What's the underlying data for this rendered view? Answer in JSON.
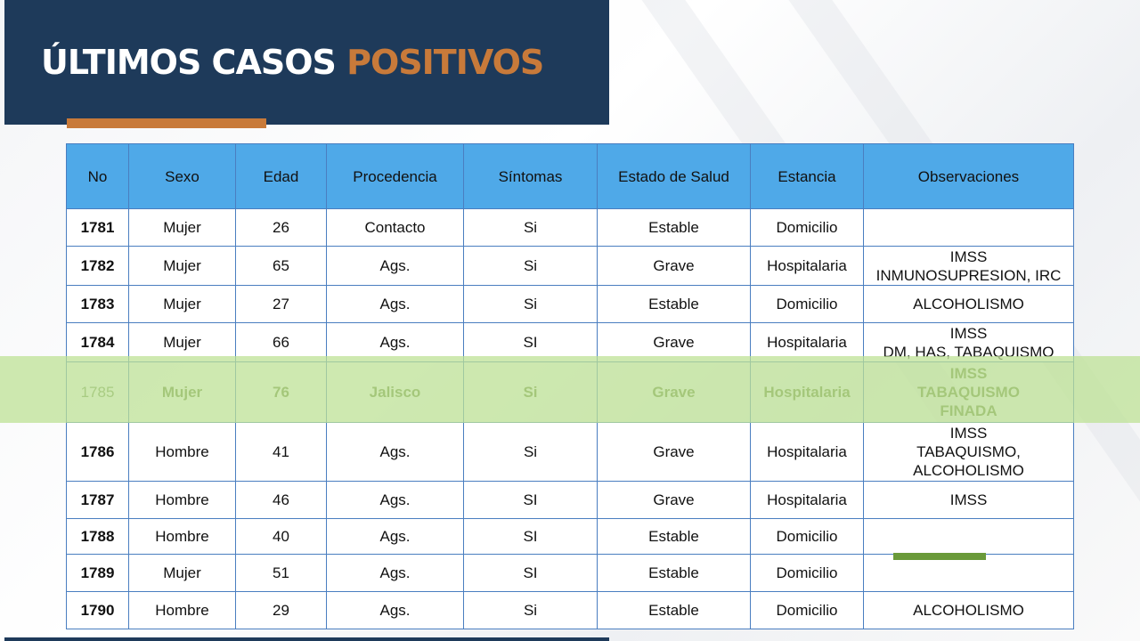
{
  "title": {
    "part1": "ÚLTIMOS CASOS ",
    "part2": "POSITIVOS"
  },
  "colors": {
    "header_bg": "#1e3a5a",
    "accent": "#c87a3a",
    "table_header": "#4fa9e8",
    "highlight": "#bee296"
  },
  "table": {
    "headers": [
      "No",
      "Sexo",
      "Edad",
      "Procedencia",
      "Síntomas",
      "Estado de Salud",
      "Estancia",
      "Observaciones"
    ],
    "rows": [
      [
        "1781",
        "Mujer",
        "26",
        "Contacto",
        "Si",
        "Estable",
        "Domicilio",
        ""
      ],
      [
        "1782",
        "Mujer",
        "65",
        "Ags.",
        "Si",
        "Grave",
        "Hospitalaria",
        "IMSS\nINMUNOSUPRESION, IRC"
      ],
      [
        "1783",
        "Mujer",
        "27",
        "Ags.",
        "Si",
        "Estable",
        "Domicilio",
        "ALCOHOLISMO"
      ],
      [
        "1784",
        "Mujer",
        "66",
        "Ags.",
        "SI",
        "Grave",
        "Hospitalaria",
        "IMSS\nDM, HAS, TABAQUISMO"
      ],
      [
        "1785",
        "Mujer",
        "76",
        "Jalisco",
        "Si",
        "Grave",
        "Hospitalaria",
        "IMSS\nTABAQUISMO\nFINADA"
      ],
      [
        "1786",
        "Hombre",
        "41",
        "Ags.",
        "Si",
        "Grave",
        "Hospitalaria",
        "IMSS\nTABAQUISMO,\nALCOHOLISMO"
      ],
      [
        "1787",
        "Hombre",
        "46",
        "Ags.",
        "SI",
        "Grave",
        "Hospitalaria",
        "IMSS"
      ],
      [
        "1788",
        "Hombre",
        "40",
        "Ags.",
        "SI",
        "Estable",
        "Domicilio",
        ""
      ],
      [
        "1789",
        "Mujer",
        "51",
        "Ags.",
        "SI",
        "Estable",
        "Domicilio",
        ""
      ],
      [
        "1790",
        "Hombre",
        "29",
        "Ags.",
        "Si",
        "Estable",
        "Domicilio",
        "ALCOHOLISMO"
      ]
    ],
    "highlighted_row": "1785"
  }
}
